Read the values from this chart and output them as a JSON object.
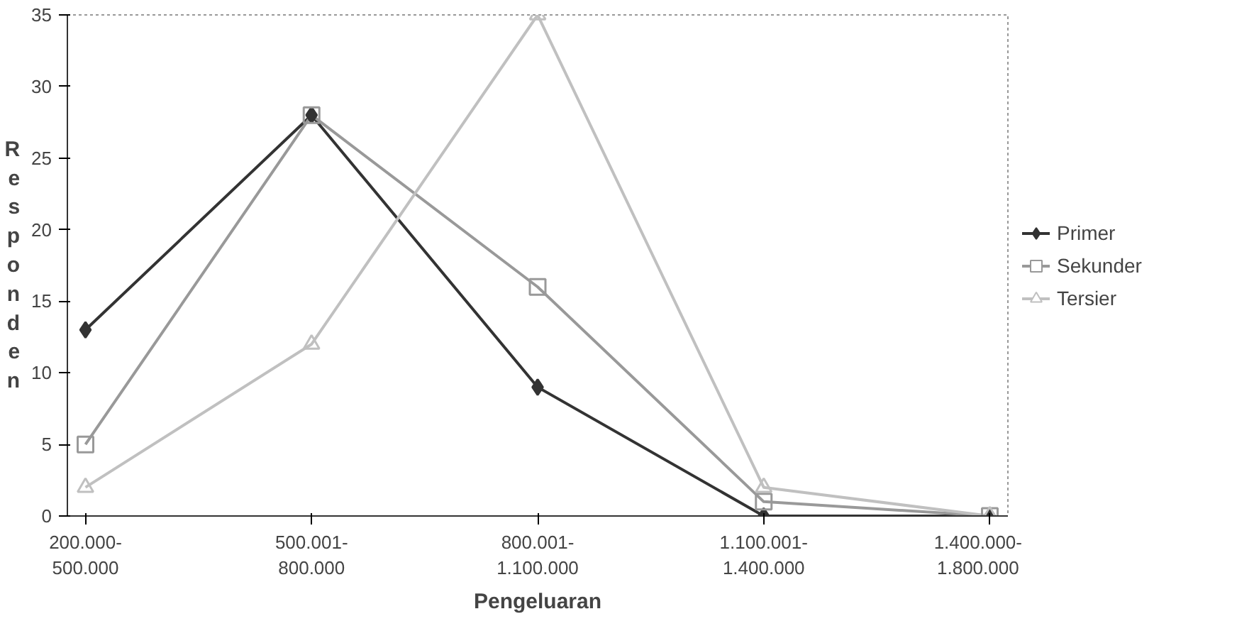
{
  "chart_data": {
    "type": "line",
    "xlabel": "Pengeluaran",
    "ylabel": "Responden",
    "categories": [
      "200.000-\n500.000",
      "500.001-\n800.000",
      "800.001-\n1.100.000",
      "1.100.001-\n1.400.000",
      "1.400.000-\n1.800.000"
    ],
    "series": [
      {
        "name": "Primer",
        "color": "#333333",
        "marker": "diamond",
        "values": [
          13,
          28,
          9,
          0,
          0
        ]
      },
      {
        "name": "Sekunder",
        "color": "#999999",
        "marker": "square",
        "values": [
          5,
          28,
          16,
          1,
          0
        ]
      },
      {
        "name": "Tersier",
        "color": "#c0c0c0",
        "marker": "triangle",
        "values": [
          2,
          12,
          35,
          2,
          0
        ]
      }
    ],
    "ylim": [
      0,
      35
    ],
    "yticks": [
      0,
      5,
      10,
      15,
      20,
      25,
      30,
      35
    ],
    "legend": "right",
    "grid": false,
    "line_style": "solid"
  }
}
